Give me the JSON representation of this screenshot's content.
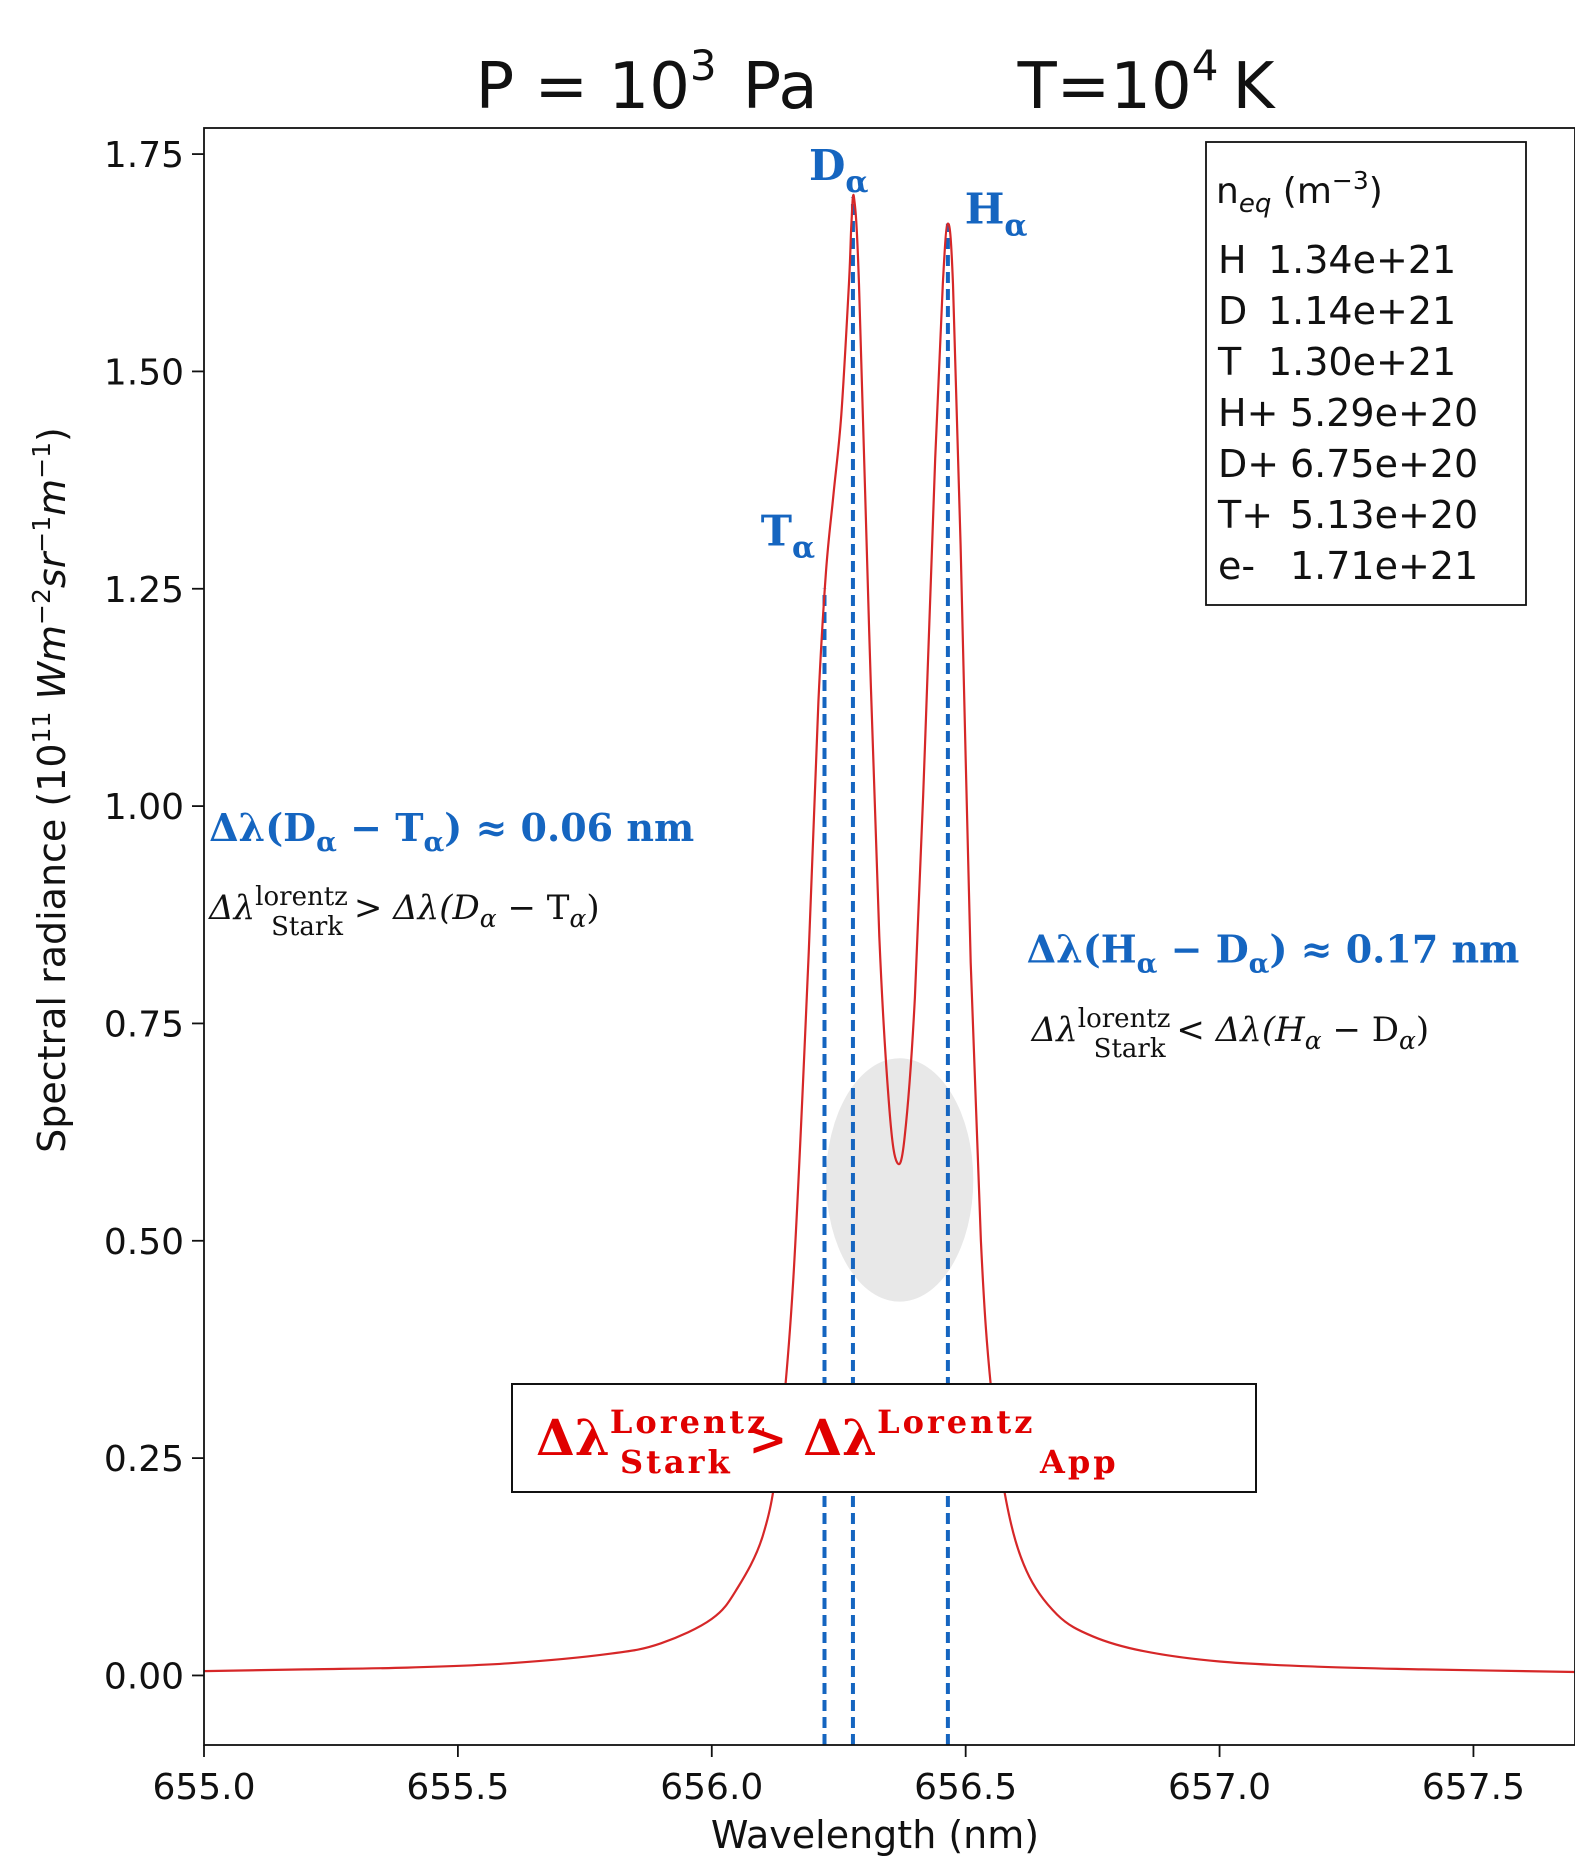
{
  "chart_data": {
    "type": "line",
    "title": {
      "pressure_prefix": "P = 10",
      "pressure_exp": "3",
      "pressure_unit": "Pa",
      "temperature_prefix": "T=10",
      "temperature_exp": "4",
      "temperature_unit": "K"
    },
    "xlabel": "Wavelength (nm)",
    "ylabel": {
      "prefix": "Spectral radiance (10",
      "exp1": "11",
      "mid1": " Wm",
      "exp2": "−2",
      "mid2": "sr",
      "exp3": "−1",
      "mid3": "m",
      "exp4": "−1",
      "suffix": ")"
    },
    "xlim": [
      655.0,
      657.7
    ],
    "ylim": [
      -0.08,
      1.78
    ],
    "xticks": [
      655.0,
      655.5,
      656.0,
      656.5,
      657.0,
      657.5
    ],
    "xtick_labels": [
      "655.0",
      "655.5",
      "656.0",
      "656.5",
      "657.0",
      "657.5"
    ],
    "yticks": [
      0.0,
      0.25,
      0.5,
      0.75,
      1.0,
      1.25,
      1.5,
      1.75
    ],
    "ytick_labels": [
      "0.00",
      "0.25",
      "0.50",
      "0.75",
      "1.00",
      "1.25",
      "1.50",
      "1.75"
    ],
    "grid": false,
    "line_color": "#d62728",
    "marker_color": "#1565c0",
    "highlight_color": "#e8e8e8",
    "series": [
      {
        "x": [
          655.0,
          655.2,
          655.4,
          655.6,
          655.8,
          655.9,
          656.0,
          656.05,
          656.1,
          656.13,
          656.16,
          656.19,
          656.21,
          656.225,
          656.24,
          656.255,
          656.27,
          656.275,
          656.28,
          656.29,
          656.31,
          656.33,
          656.35,
          656.365,
          656.38,
          656.4,
          656.42,
          656.44,
          656.455,
          656.465,
          656.475,
          656.49,
          656.51,
          656.53,
          656.55,
          656.58,
          656.62,
          656.68,
          656.75,
          656.85,
          657.0,
          657.2,
          657.4,
          657.7
        ],
        "y": [
          0.005,
          0.007,
          0.009,
          0.014,
          0.025,
          0.037,
          0.065,
          0.1,
          0.16,
          0.25,
          0.45,
          0.82,
          1.12,
          1.27,
          1.36,
          1.45,
          1.6,
          1.67,
          1.7,
          1.6,
          1.2,
          0.85,
          0.65,
          0.59,
          0.62,
          0.78,
          1.07,
          1.4,
          1.6,
          1.67,
          1.6,
          1.3,
          0.82,
          0.5,
          0.33,
          0.2,
          0.12,
          0.07,
          0.045,
          0.028,
          0.016,
          0.01,
          0.007,
          0.004
        ]
      }
    ],
    "peak_lines": [
      {
        "id": "t-alpha",
        "x": 656.222,
        "y_top": 1.25,
        "label": "T",
        "sub": "α",
        "label_x": 656.15,
        "label_y": 1.3
      },
      {
        "id": "d-alpha",
        "x": 656.278,
        "y_top": 1.7,
        "label": "D",
        "sub": "α",
        "label_x": 656.25,
        "label_y": 1.72
      },
      {
        "id": "h-alpha",
        "x": 656.465,
        "y_top": 1.67,
        "label": "H",
        "sub": "α",
        "label_x": 656.56,
        "label_y": 1.67
      }
    ],
    "highlight_ellipse": {
      "cx": 656.37,
      "cy": 0.57,
      "rx": 0.145,
      "ry": 0.14
    },
    "legend": {
      "placement": "top-right",
      "header_main": "n",
      "header_sub": "eq",
      "header_unit_prefix": " (m",
      "header_unit_exp": "−3",
      "header_unit_suffix": ")",
      "rows": [
        {
          "species": "H",
          "value": "1.34e+21"
        },
        {
          "species": "D",
          "value": "1.14e+21"
        },
        {
          "species": "T",
          "value": "1.30e+21"
        },
        {
          "species": "H+",
          "value": "5.29e+20"
        },
        {
          "species": "D+",
          "value": "6.75e+20"
        },
        {
          "species": "T+",
          "value": "5.13e+20"
        },
        {
          "species": "e-",
          "value": "1.71e+21"
        }
      ]
    },
    "annotations": {
      "dt_sep": {
        "x": 655.01,
        "y": 0.96,
        "prefix": "Δλ(D",
        "sub1": "α",
        "mid": " − T",
        "sub2": "α",
        "suffix": ")  ≈  0.06 nm"
      },
      "dt_cmp": {
        "x": 655.01,
        "y": 0.87,
        "lhs": "Δλ",
        "sup": "lorentz",
        "sub": "Stark",
        "op": ">",
        "rhs_prefix": "Δλ(D",
        "rhs_sub1": "α",
        "rhs_mid": " − T",
        "rhs_sub2": "α",
        "rhs_suffix": ")"
      },
      "hd_sep": {
        "x": 656.62,
        "y": 0.82,
        "prefix": "Δλ(H",
        "sub1": "α",
        "mid": " − D",
        "sub2": "α",
        "suffix": ")  ≈  0.17 nm"
      },
      "hd_cmp": {
        "x": 656.63,
        "y": 0.73,
        "lhs": "Δλ",
        "sup": "lorentz",
        "sub": "Stark",
        "op": "<",
        "rhs_prefix": "Δλ(H",
        "rhs_sub1": "α",
        "rhs_mid": " − D",
        "rhs_sub2": "α",
        "rhs_suffix": ")"
      },
      "box": {
        "lhs": "Δλ",
        "lhs_sup": "Lorentz",
        "lhs_sub": "Stark",
        "op": ">",
        "rhs": "Δλ",
        "rhs_sup": "Lorentz",
        "rhs_sub": "App"
      }
    }
  }
}
